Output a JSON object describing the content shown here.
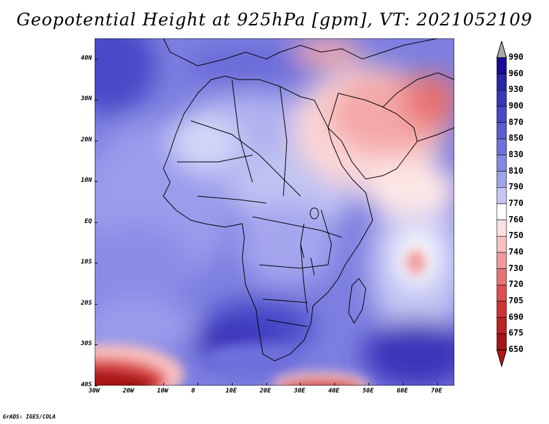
{
  "title": "Geopotential Height at 925hPa [gpm], VT: 2021052109",
  "footer": "GrADS: IGES/COLA",
  "map": {
    "region": "Africa and Middle East",
    "lon_range": [
      -30,
      75
    ],
    "lat_range": [
      -40,
      45
    ],
    "lat_labels": [
      "40N",
      "30N",
      "20N",
      "10N",
      "EQ",
      "10S",
      "20S",
      "30S",
      "40S"
    ],
    "lon_labels": [
      "30W",
      "20W",
      "10W",
      "0",
      "10E",
      "20E",
      "30E",
      "40E",
      "50E",
      "60E",
      "70E"
    ]
  },
  "colorbar": {
    "levels": [
      "990",
      "960",
      "930",
      "900",
      "870",
      "850",
      "830",
      "810",
      "790",
      "770",
      "760",
      "750",
      "740",
      "730",
      "720",
      "705",
      "690",
      "675",
      "650"
    ],
    "colors": [
      "#aaaaaa",
      "#1a0a9a",
      "#2a24aa",
      "#3a36ba",
      "#4a48c8",
      "#5a5cd2",
      "#6e70dc",
      "#8688e4",
      "#a0a2ec",
      "#c4c6f4",
      "#ffffff",
      "#fde0e0",
      "#f8c0c0",
      "#f09a9a",
      "#e87272",
      "#e04e4e",
      "#d03232",
      "#bc2222",
      "#a81414",
      "#b01818"
    ]
  }
}
